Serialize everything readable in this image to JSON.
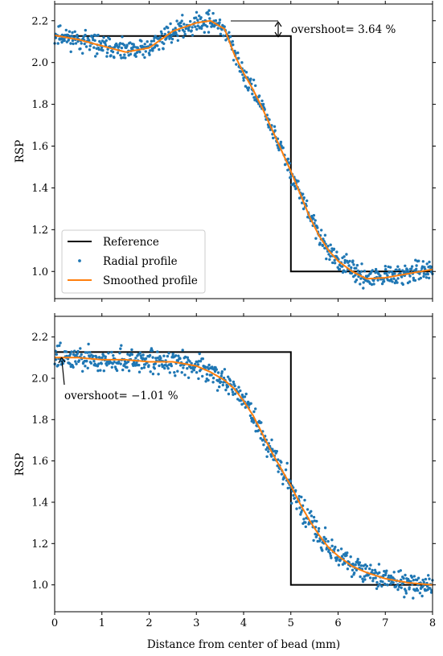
{
  "chart_data": [
    {
      "type": "line",
      "panel": "top",
      "ylabel": "RSP",
      "xlabel": "",
      "xlim": [
        0,
        8
      ],
      "ylim": [
        0.87,
        2.28
      ],
      "xticks": [
        0,
        1,
        2,
        3,
        4,
        5,
        6,
        7,
        8
      ],
      "yticks": [
        1.0,
        1.2,
        1.4,
        1.6,
        1.8,
        2.0,
        2.2
      ],
      "ytick_labels": [
        "1.0",
        "1.2",
        "1.4",
        "1.6",
        "1.8",
        "2.0",
        "2.2"
      ],
      "xtick_labels_visible": false,
      "legend": {
        "placement": "lower-left",
        "entries": [
          "Reference",
          "Radial profile",
          "Smoothed profile"
        ]
      },
      "annotation": {
        "text": "overshoot= 3.64 %",
        "arrow": "double",
        "x": 4.7,
        "y_from": 2.127,
        "y_to": 2.205
      },
      "series": [
        {
          "name": "Reference",
          "style": "step",
          "color": "#000000",
          "x": [
            0.0,
            5.0,
            5.0,
            8.0
          ],
          "y": [
            2.127,
            2.127,
            1.0,
            1.0
          ]
        },
        {
          "name": "Smoothed profile",
          "style": "line",
          "color": "#ff7f0e",
          "x": [
            0.0,
            0.5,
            1.0,
            1.5,
            2.0,
            2.5,
            3.0,
            3.3,
            3.6,
            3.8,
            4.0,
            4.2,
            4.4,
            4.6,
            4.8,
            5.0,
            5.2,
            5.4,
            5.6,
            5.8,
            6.0,
            6.3,
            6.6,
            7.0,
            7.5,
            8.0
          ],
          "y": [
            2.13,
            2.11,
            2.08,
            2.05,
            2.07,
            2.15,
            2.19,
            2.2,
            2.16,
            2.04,
            1.95,
            1.87,
            1.78,
            1.68,
            1.58,
            1.48,
            1.37,
            1.26,
            1.17,
            1.1,
            1.05,
            1.0,
            0.965,
            0.97,
            0.99,
            1.01
          ]
        },
        {
          "name": "Radial profile",
          "style": "scatter",
          "color": "#1f77b4",
          "noise": 0.03,
          "x": [
            0.0,
            0.5,
            1.0,
            1.5,
            2.0,
            2.5,
            3.0,
            3.3,
            3.6,
            3.8,
            4.0,
            4.2,
            4.4,
            4.6,
            4.8,
            5.0,
            5.2,
            5.4,
            5.6,
            5.8,
            6.0,
            6.3,
            6.6,
            7.0,
            7.5,
            8.0
          ],
          "y": [
            2.13,
            2.11,
            2.08,
            2.05,
            2.07,
            2.15,
            2.19,
            2.2,
            2.16,
            2.04,
            1.95,
            1.87,
            1.78,
            1.68,
            1.58,
            1.48,
            1.37,
            1.26,
            1.17,
            1.1,
            1.05,
            1.0,
            0.965,
            0.97,
            0.99,
            1.01
          ]
        }
      ]
    },
    {
      "type": "line",
      "panel": "bottom",
      "ylabel": "RSP",
      "xlabel": "Distance from center of bead (mm)",
      "xlim": [
        0,
        8
      ],
      "ylim": [
        0.87,
        2.3
      ],
      "xticks": [
        0,
        1,
        2,
        3,
        4,
        5,
        6,
        7,
        8
      ],
      "xtick_labels": [
        "0",
        "1",
        "2",
        "3",
        "4",
        "5",
        "6",
        "7",
        "8"
      ],
      "yticks": [
        1.0,
        1.2,
        1.4,
        1.6,
        1.8,
        2.0,
        2.2
      ],
      "ytick_labels": [
        "1.0",
        "1.2",
        "1.4",
        "1.6",
        "1.8",
        "2.0",
        "2.2"
      ],
      "annotation": {
        "text": "overshoot= −1.01 %",
        "arrow": "single",
        "x": 0.16,
        "y_from": 1.96,
        "y_to": 2.12
      },
      "series": [
        {
          "name": "Reference",
          "style": "step",
          "color": "#000000",
          "x": [
            0.0,
            5.0,
            5.0,
            8.0
          ],
          "y": [
            2.127,
            2.127,
            1.0,
            1.0
          ]
        },
        {
          "name": "Smoothed profile",
          "style": "line",
          "color": "#ff7f0e",
          "x": [
            0.0,
            0.5,
            1.0,
            1.5,
            2.0,
            2.5,
            3.0,
            3.3,
            3.6,
            3.8,
            4.0,
            4.2,
            4.4,
            4.6,
            4.8,
            5.0,
            5.2,
            5.4,
            5.6,
            5.8,
            6.0,
            6.3,
            6.6,
            7.0,
            7.5,
            8.0
          ],
          "y": [
            2.1,
            2.1,
            2.09,
            2.09,
            2.08,
            2.08,
            2.06,
            2.03,
            1.99,
            1.95,
            1.89,
            1.82,
            1.73,
            1.64,
            1.56,
            1.48,
            1.39,
            1.31,
            1.24,
            1.18,
            1.14,
            1.09,
            1.06,
            1.03,
            1.01,
            1.0
          ]
        },
        {
          "name": "Radial profile",
          "style": "scatter",
          "color": "#1f77b4",
          "noise": 0.035,
          "x": [
            0.0,
            0.5,
            1.0,
            1.5,
            2.0,
            2.5,
            3.0,
            3.3,
            3.6,
            3.8,
            4.0,
            4.2,
            4.4,
            4.6,
            4.8,
            5.0,
            5.2,
            5.4,
            5.6,
            5.8,
            6.0,
            6.3,
            6.6,
            7.0,
            7.5,
            8.0
          ],
          "y": [
            2.1,
            2.1,
            2.09,
            2.09,
            2.08,
            2.08,
            2.06,
            2.03,
            1.99,
            1.95,
            1.89,
            1.82,
            1.73,
            1.64,
            1.56,
            1.48,
            1.39,
            1.31,
            1.24,
            1.18,
            1.14,
            1.09,
            1.06,
            1.03,
            1.01,
            1.0
          ]
        }
      ]
    }
  ]
}
